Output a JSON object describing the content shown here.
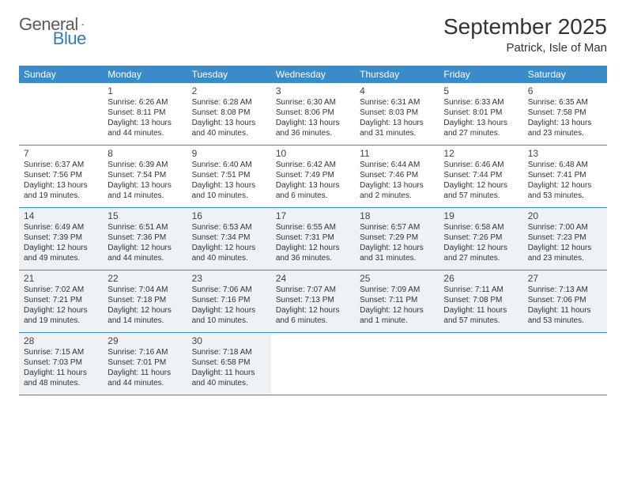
{
  "logo": {
    "text1": "General",
    "text2": "Blue"
  },
  "title": "September 2025",
  "location": "Patrick, Isle of Man",
  "colors": {
    "header_bg": "#3a8bc9",
    "header_text": "#ffffff",
    "shaded_bg": "#eef2f5",
    "border": "#3a8bc9",
    "body_text": "#333333",
    "logo_gray": "#5a5a5a",
    "logo_blue": "#2f7bbf"
  },
  "typography": {
    "title_fontsize": 28,
    "location_fontsize": 15,
    "dow_fontsize": 12,
    "day_num_fontsize": 12,
    "body_fontsize": 10
  },
  "days_of_week": [
    "Sunday",
    "Monday",
    "Tuesday",
    "Wednesday",
    "Thursday",
    "Friday",
    "Saturday"
  ],
  "weeks": [
    [
      {
        "num": "",
        "sunrise": "",
        "sunset": "",
        "daylight": "",
        "shaded": false
      },
      {
        "num": "1",
        "sunrise": "Sunrise: 6:26 AM",
        "sunset": "Sunset: 8:11 PM",
        "daylight": "Daylight: 13 hours and 44 minutes.",
        "shaded": false
      },
      {
        "num": "2",
        "sunrise": "Sunrise: 6:28 AM",
        "sunset": "Sunset: 8:08 PM",
        "daylight": "Daylight: 13 hours and 40 minutes.",
        "shaded": false
      },
      {
        "num": "3",
        "sunrise": "Sunrise: 6:30 AM",
        "sunset": "Sunset: 8:06 PM",
        "daylight": "Daylight: 13 hours and 36 minutes.",
        "shaded": false
      },
      {
        "num": "4",
        "sunrise": "Sunrise: 6:31 AM",
        "sunset": "Sunset: 8:03 PM",
        "daylight": "Daylight: 13 hours and 31 minutes.",
        "shaded": false
      },
      {
        "num": "5",
        "sunrise": "Sunrise: 6:33 AM",
        "sunset": "Sunset: 8:01 PM",
        "daylight": "Daylight: 13 hours and 27 minutes.",
        "shaded": false
      },
      {
        "num": "6",
        "sunrise": "Sunrise: 6:35 AM",
        "sunset": "Sunset: 7:58 PM",
        "daylight": "Daylight: 13 hours and 23 minutes.",
        "shaded": false
      }
    ],
    [
      {
        "num": "7",
        "sunrise": "Sunrise: 6:37 AM",
        "sunset": "Sunset: 7:56 PM",
        "daylight": "Daylight: 13 hours and 19 minutes.",
        "shaded": false
      },
      {
        "num": "8",
        "sunrise": "Sunrise: 6:39 AM",
        "sunset": "Sunset: 7:54 PM",
        "daylight": "Daylight: 13 hours and 14 minutes.",
        "shaded": false
      },
      {
        "num": "9",
        "sunrise": "Sunrise: 6:40 AM",
        "sunset": "Sunset: 7:51 PM",
        "daylight": "Daylight: 13 hours and 10 minutes.",
        "shaded": false
      },
      {
        "num": "10",
        "sunrise": "Sunrise: 6:42 AM",
        "sunset": "Sunset: 7:49 PM",
        "daylight": "Daylight: 13 hours and 6 minutes.",
        "shaded": false
      },
      {
        "num": "11",
        "sunrise": "Sunrise: 6:44 AM",
        "sunset": "Sunset: 7:46 PM",
        "daylight": "Daylight: 13 hours and 2 minutes.",
        "shaded": false
      },
      {
        "num": "12",
        "sunrise": "Sunrise: 6:46 AM",
        "sunset": "Sunset: 7:44 PM",
        "daylight": "Daylight: 12 hours and 57 minutes.",
        "shaded": false
      },
      {
        "num": "13",
        "sunrise": "Sunrise: 6:48 AM",
        "sunset": "Sunset: 7:41 PM",
        "daylight": "Daylight: 12 hours and 53 minutes.",
        "shaded": false
      }
    ],
    [
      {
        "num": "14",
        "sunrise": "Sunrise: 6:49 AM",
        "sunset": "Sunset: 7:39 PM",
        "daylight": "Daylight: 12 hours and 49 minutes.",
        "shaded": true
      },
      {
        "num": "15",
        "sunrise": "Sunrise: 6:51 AM",
        "sunset": "Sunset: 7:36 PM",
        "daylight": "Daylight: 12 hours and 44 minutes.",
        "shaded": true
      },
      {
        "num": "16",
        "sunrise": "Sunrise: 6:53 AM",
        "sunset": "Sunset: 7:34 PM",
        "daylight": "Daylight: 12 hours and 40 minutes.",
        "shaded": true
      },
      {
        "num": "17",
        "sunrise": "Sunrise: 6:55 AM",
        "sunset": "Sunset: 7:31 PM",
        "daylight": "Daylight: 12 hours and 36 minutes.",
        "shaded": true
      },
      {
        "num": "18",
        "sunrise": "Sunrise: 6:57 AM",
        "sunset": "Sunset: 7:29 PM",
        "daylight": "Daylight: 12 hours and 31 minutes.",
        "shaded": true
      },
      {
        "num": "19",
        "sunrise": "Sunrise: 6:58 AM",
        "sunset": "Sunset: 7:26 PM",
        "daylight": "Daylight: 12 hours and 27 minutes.",
        "shaded": true
      },
      {
        "num": "20",
        "sunrise": "Sunrise: 7:00 AM",
        "sunset": "Sunset: 7:23 PM",
        "daylight": "Daylight: 12 hours and 23 minutes.",
        "shaded": true
      }
    ],
    [
      {
        "num": "21",
        "sunrise": "Sunrise: 7:02 AM",
        "sunset": "Sunset: 7:21 PM",
        "daylight": "Daylight: 12 hours and 19 minutes.",
        "shaded": true
      },
      {
        "num": "22",
        "sunrise": "Sunrise: 7:04 AM",
        "sunset": "Sunset: 7:18 PM",
        "daylight": "Daylight: 12 hours and 14 minutes.",
        "shaded": true
      },
      {
        "num": "23",
        "sunrise": "Sunrise: 7:06 AM",
        "sunset": "Sunset: 7:16 PM",
        "daylight": "Daylight: 12 hours and 10 minutes.",
        "shaded": true
      },
      {
        "num": "24",
        "sunrise": "Sunrise: 7:07 AM",
        "sunset": "Sunset: 7:13 PM",
        "daylight": "Daylight: 12 hours and 6 minutes.",
        "shaded": true
      },
      {
        "num": "25",
        "sunrise": "Sunrise: 7:09 AM",
        "sunset": "Sunset: 7:11 PM",
        "daylight": "Daylight: 12 hours and 1 minute.",
        "shaded": true
      },
      {
        "num": "26",
        "sunrise": "Sunrise: 7:11 AM",
        "sunset": "Sunset: 7:08 PM",
        "daylight": "Daylight: 11 hours and 57 minutes.",
        "shaded": true
      },
      {
        "num": "27",
        "sunrise": "Sunrise: 7:13 AM",
        "sunset": "Sunset: 7:06 PM",
        "daylight": "Daylight: 11 hours and 53 minutes.",
        "shaded": true
      }
    ],
    [
      {
        "num": "28",
        "sunrise": "Sunrise: 7:15 AM",
        "sunset": "Sunset: 7:03 PM",
        "daylight": "Daylight: 11 hours and 48 minutes.",
        "shaded": true
      },
      {
        "num": "29",
        "sunrise": "Sunrise: 7:16 AM",
        "sunset": "Sunset: 7:01 PM",
        "daylight": "Daylight: 11 hours and 44 minutes.",
        "shaded": true
      },
      {
        "num": "30",
        "sunrise": "Sunrise: 7:18 AM",
        "sunset": "Sunset: 6:58 PM",
        "daylight": "Daylight: 11 hours and 40 minutes.",
        "shaded": true
      },
      {
        "num": "",
        "sunrise": "",
        "sunset": "",
        "daylight": "",
        "shaded": false
      },
      {
        "num": "",
        "sunrise": "",
        "sunset": "",
        "daylight": "",
        "shaded": false
      },
      {
        "num": "",
        "sunrise": "",
        "sunset": "",
        "daylight": "",
        "shaded": false
      },
      {
        "num": "",
        "sunrise": "",
        "sunset": "",
        "daylight": "",
        "shaded": false
      }
    ]
  ]
}
